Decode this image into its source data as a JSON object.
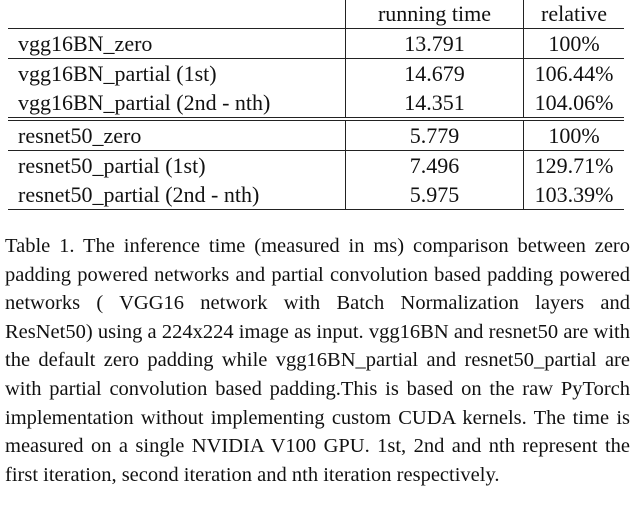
{
  "table": {
    "headers": [
      "",
      "running time",
      "relative"
    ],
    "rows": [
      [
        "vgg16BN_zero",
        "13.791",
        "100%"
      ],
      [
        "vgg16BN_partial (1st)",
        "14.679",
        "106.44%"
      ],
      [
        "vgg16BN_partial (2nd - nth)",
        "14.351",
        "104.06%"
      ],
      [
        "resnet50_zero",
        "5.779",
        "100%"
      ],
      [
        "resnet50_partial (1st)",
        "7.496",
        "129.71%"
      ],
      [
        "resnet50_partial (2nd - nth)",
        "5.975",
        "103.39%"
      ]
    ]
  },
  "caption": "Table 1. The inference time (measured in ms) comparison between zero padding powered networks and partial convolution based padding powered networks ( VGG16 network with Batch Normalization layers and ResNet50) using a 224x224 image as input. vgg16BN and resnet50 are with the default zero padding while vgg16BN_partial and resnet50_partial are with partial convolution based padding.This is based on the raw PyTorch implementation without implementing custom CUDA kernels. The time is measured on a single NVIDIA V100 GPU. 1st, 2nd and nth represent the first iteration, second iteration and nth iteration respectively."
}
